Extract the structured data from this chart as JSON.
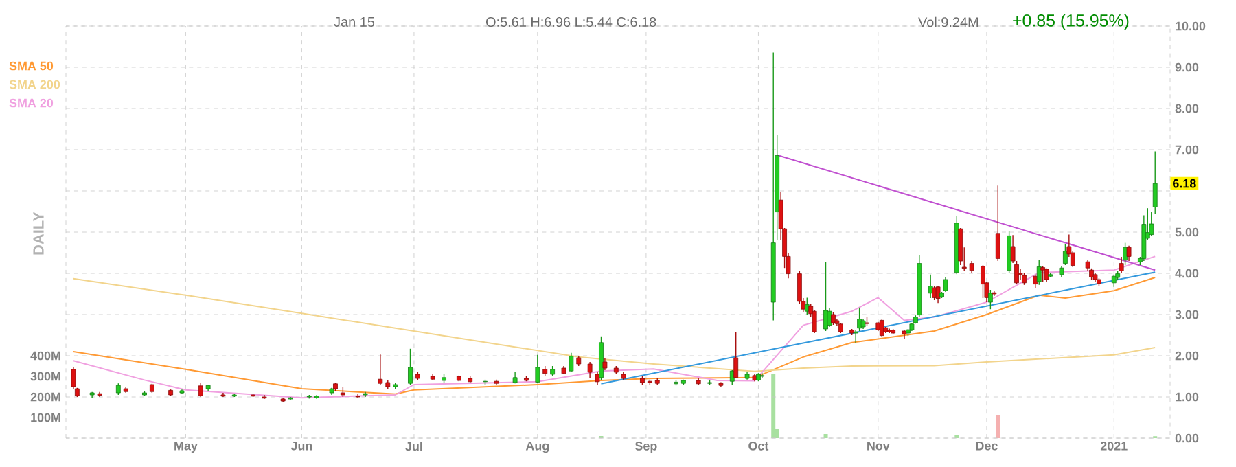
{
  "chart_data": {
    "type": "candlestick",
    "x": [
      "2020-04-01",
      "2020-04-02",
      "2020-04-06",
      "2020-04-08",
      "2020-04-13",
      "2020-04-15",
      "2020-04-20",
      "2020-04-22",
      "2020-04-27",
      "2020-04-30",
      "2020-05-05",
      "2020-05-07",
      "2020-05-11",
      "2020-05-14",
      "2020-05-19",
      "2020-05-22",
      "2020-05-27",
      "2020-05-29",
      "2020-06-03",
      "2020-06-05",
      "2020-06-09",
      "2020-06-10",
      "2020-06-12",
      "2020-06-16",
      "2020-06-18",
      "2020-06-22",
      "2020-06-24",
      "2020-06-26",
      "2020-06-30",
      "2020-07-02",
      "2020-07-06",
      "2020-07-09",
      "2020-07-13",
      "2020-07-16",
      "2020-07-20",
      "2020-07-23",
      "2020-07-28",
      "2020-07-31",
      "2020-08-03",
      "2020-08-05",
      "2020-08-07",
      "2020-08-10",
      "2020-08-12",
      "2020-08-14",
      "2020-08-17",
      "2020-08-19",
      "2020-08-20",
      "2020-08-21",
      "2020-08-24",
      "2020-08-26",
      "2020-08-31",
      "2020-09-02",
      "2020-09-04",
      "2020-09-09",
      "2020-09-11",
      "2020-09-15",
      "2020-09-18",
      "2020-09-21",
      "2020-09-24",
      "2020-09-25",
      "2020-09-28",
      "2020-09-30",
      "2020-10-01",
      "2020-10-02",
      "2020-10-05",
      "2020-10-06",
      "2020-10-07",
      "2020-10-08",
      "2020-10-09",
      "2020-10-12",
      "2020-10-13",
      "2020-10-14",
      "2020-10-15",
      "2020-10-16",
      "2020-10-19",
      "2020-10-20",
      "2020-10-21",
      "2020-10-22",
      "2020-10-23",
      "2020-10-26",
      "2020-10-27",
      "2020-10-28",
      "2020-10-29",
      "2020-10-30",
      "2020-11-02",
      "2020-11-03",
      "2020-11-04",
      "2020-11-05",
      "2020-11-06",
      "2020-11-09",
      "2020-11-10",
      "2020-11-11",
      "2020-11-12",
      "2020-11-13",
      "2020-11-16",
      "2020-11-17",
      "2020-11-18",
      "2020-11-19",
      "2020-11-20",
      "2020-11-23",
      "2020-11-24",
      "2020-11-25",
      "2020-11-27",
      "2020-11-30",
      "2020-12-01",
      "2020-12-02",
      "2020-12-03",
      "2020-12-04",
      "2020-12-07",
      "2020-12-08",
      "2020-12-09",
      "2020-12-10",
      "2020-12-11",
      "2020-12-14",
      "2020-12-15",
      "2020-12-16",
      "2020-12-17",
      "2020-12-18",
      "2020-12-21",
      "2020-12-22",
      "2020-12-23",
      "2020-12-24",
      "2020-12-28",
      "2020-12-29",
      "2020-12-30",
      "2020-12-31",
      "2021-01-04",
      "2021-01-05",
      "2021-01-06",
      "2021-01-07",
      "2021-01-08",
      "2021-01-11",
      "2021-01-12",
      "2021-01-13",
      "2021-01-14",
      "2021-01-15"
    ],
    "ohlc": [
      [
        1.67,
        1.72,
        1.2,
        1.25
      ],
      [
        1.2,
        1.22,
        1.0,
        1.03
      ],
      [
        1.05,
        1.12,
        0.98,
        1.1
      ],
      [
        1.08,
        1.12,
        1.0,
        1.04
      ],
      [
        1.1,
        1.33,
        1.05,
        1.28
      ],
      [
        1.2,
        1.25,
        1.1,
        1.13
      ],
      [
        1.05,
        1.15,
        1.02,
        1.1
      ],
      [
        1.3,
        1.32,
        1.1,
        1.13
      ],
      [
        1.16,
        1.18,
        1.03,
        1.05
      ],
      [
        1.1,
        1.18,
        1.08,
        1.15
      ],
      [
        1.27,
        1.35,
        1.0,
        1.03
      ],
      [
        1.2,
        1.3,
        1.15,
        1.28
      ],
      [
        1.05,
        1.1,
        1.0,
        1.02
      ],
      [
        1.02,
        1.08,
        1.0,
        1.05
      ],
      [
        1.05,
        1.08,
        1.0,
        1.02
      ],
      [
        1.0,
        1.05,
        0.95,
        0.97
      ],
      [
        0.95,
        0.98,
        0.88,
        0.9
      ],
      [
        0.95,
        1.0,
        0.92,
        0.98
      ],
      [
        1.0,
        1.05,
        0.96,
        1.02
      ],
      [
        0.98,
        1.05,
        0.95,
        1.02
      ],
      [
        1.1,
        1.22,
        1.05,
        1.2
      ],
      [
        1.32,
        1.35,
        1.15,
        1.2
      ],
      [
        1.1,
        1.25,
        1.0,
        1.05
      ],
      [
        1.02,
        1.08,
        0.98,
        1.0
      ],
      [
        1.05,
        1.12,
        1.0,
        1.08
      ],
      [
        1.43,
        2.03,
        1.3,
        1.33
      ],
      [
        1.35,
        1.4,
        1.2,
        1.25
      ],
      [
        1.25,
        1.35,
        1.2,
        1.3
      ],
      [
        1.33,
        2.17,
        1.3,
        1.72
      ],
      [
        1.55,
        1.6,
        1.4,
        1.45
      ],
      [
        1.5,
        1.55,
        1.4,
        1.43
      ],
      [
        1.4,
        1.55,
        1.35,
        1.47
      ],
      [
        1.5,
        1.52,
        1.38,
        1.4
      ],
      [
        1.45,
        1.5,
        1.35,
        1.37
      ],
      [
        1.37,
        1.42,
        1.3,
        1.38
      ],
      [
        1.38,
        1.42,
        1.3,
        1.33
      ],
      [
        1.35,
        1.6,
        1.33,
        1.47
      ],
      [
        1.45,
        1.5,
        1.38,
        1.4
      ],
      [
        1.36,
        2.02,
        1.33,
        1.72
      ],
      [
        1.67,
        1.75,
        1.5,
        1.57
      ],
      [
        1.55,
        1.75,
        1.5,
        1.67
      ],
      [
        1.7,
        1.75,
        1.55,
        1.57
      ],
      [
        1.63,
        2.07,
        1.6,
        1.99
      ],
      [
        1.95,
        2.0,
        1.75,
        1.8
      ],
      [
        1.8,
        1.85,
        1.45,
        1.6
      ],
      [
        1.55,
        1.6,
        1.3,
        1.37
      ],
      [
        1.47,
        2.47,
        1.4,
        2.32
      ],
      [
        1.85,
        1.95,
        1.65,
        1.7
      ],
      [
        1.7,
        1.75,
        1.55,
        1.6
      ],
      [
        1.55,
        1.6,
        1.4,
        1.45
      ],
      [
        1.45,
        1.5,
        1.3,
        1.35
      ],
      [
        1.38,
        1.42,
        1.3,
        1.35
      ],
      [
        1.4,
        1.45,
        1.3,
        1.33
      ],
      [
        1.32,
        1.4,
        1.28,
        1.36
      ],
      [
        1.33,
        1.42,
        1.3,
        1.4
      ],
      [
        1.4,
        1.45,
        1.3,
        1.32
      ],
      [
        1.33,
        1.4,
        1.3,
        1.35
      ],
      [
        1.33,
        1.36,
        1.25,
        1.28
      ],
      [
        1.38,
        1.65,
        1.3,
        1.63
      ],
      [
        1.95,
        2.57,
        1.45,
        1.47
      ],
      [
        1.45,
        1.6,
        1.42,
        1.55
      ],
      [
        1.52,
        1.55,
        1.38,
        1.41
      ],
      [
        1.41,
        1.58,
        1.38,
        1.55
      ],
      [
        1.5,
        1.58,
        1.45,
        1.52
      ],
      [
        3.3,
        9.36,
        2.86,
        4.74
      ],
      [
        5.49,
        7.36,
        4.8,
        6.86
      ],
      [
        5.78,
        5.97,
        4.8,
        5.08
      ],
      [
        5.08,
        5.1,
        4.13,
        4.41
      ],
      [
        4.41,
        4.5,
        3.88,
        3.99
      ],
      [
        3.99,
        4.05,
        3.25,
        3.32
      ],
      [
        3.32,
        3.4,
        3.05,
        3.13
      ],
      [
        3.08,
        3.41,
        3.0,
        3.24
      ],
      [
        3.2,
        3.25,
        2.95,
        3.02
      ],
      [
        3.08,
        3.1,
        2.55,
        2.58
      ],
      [
        2.65,
        4.27,
        2.6,
        3.1
      ],
      [
        2.74,
        3.15,
        2.7,
        3.08
      ],
      [
        3.0,
        3.05,
        2.75,
        2.8
      ],
      [
        2.85,
        2.9,
        2.72,
        2.78
      ],
      [
        2.77,
        2.8,
        2.55,
        2.58
      ],
      [
        2.62,
        2.65,
        2.5,
        2.55
      ],
      [
        2.55,
        2.62,
        2.3,
        2.58
      ],
      [
        2.67,
        3.17,
        2.6,
        2.89
      ],
      [
        2.7,
        2.9,
        2.65,
        2.85
      ],
      [
        2.8,
        2.94,
        2.72,
        2.78
      ],
      [
        2.8,
        2.82,
        2.6,
        2.63
      ],
      [
        2.86,
        2.88,
        2.45,
        2.49
      ],
      [
        2.68,
        2.7,
        2.55,
        2.58
      ],
      [
        2.62,
        2.66,
        2.55,
        2.58
      ],
      [
        2.62,
        2.65,
        2.52,
        2.55
      ],
      [
        2.6,
        2.62,
        2.41,
        2.53
      ],
      [
        2.55,
        2.65,
        2.48,
        2.63
      ],
      [
        2.63,
        2.8,
        2.6,
        2.77
      ],
      [
        2.8,
        2.98,
        2.78,
        2.94
      ],
      [
        2.99,
        4.44,
        2.95,
        4.24
      ],
      [
        3.52,
        3.97,
        3.4,
        3.69
      ],
      [
        3.65,
        3.7,
        3.35,
        3.41
      ],
      [
        3.67,
        3.7,
        3.28,
        3.39
      ],
      [
        3.43,
        3.55,
        3.4,
        3.52
      ],
      [
        3.58,
        3.9,
        3.55,
        3.85
      ],
      [
        4.02,
        5.39,
        3.98,
        5.22
      ],
      [
        5.08,
        5.1,
        4.2,
        4.3
      ],
      [
        4.15,
        4.63,
        4.05,
        4.12
      ],
      [
        4.24,
        4.3,
        4.0,
        4.07
      ],
      [
        4.17,
        4.2,
        3.4,
        3.74
      ],
      [
        3.77,
        3.8,
        3.3,
        3.41
      ],
      [
        3.3,
        3.6,
        3.13,
        3.52
      ],
      [
        3.53,
        3.57,
        3.45,
        3.5
      ],
      [
        4.97,
        6.13,
        4.3,
        4.36
      ],
      [
        4.07,
        5.02,
        4.0,
        4.91
      ],
      [
        4.65,
        4.93,
        4.25,
        4.3
      ],
      [
        4.21,
        4.3,
        3.75,
        3.77
      ],
      [
        4.0,
        4.1,
        3.85,
        3.97
      ],
      [
        3.95,
        4.0,
        3.72,
        3.77
      ],
      [
        3.93,
        3.97,
        3.65,
        3.74
      ],
      [
        3.8,
        4.32,
        3.72,
        4.16
      ],
      [
        4.14,
        4.18,
        3.8,
        4.08
      ],
      [
        4.1,
        4.12,
        3.8,
        3.85
      ],
      [
        3.93,
        4.0,
        3.9,
        3.97
      ],
      [
        3.97,
        4.17,
        3.9,
        4.13
      ],
      [
        4.24,
        4.7,
        4.2,
        4.54
      ],
      [
        4.65,
        4.94,
        4.4,
        4.47
      ],
      [
        4.5,
        4.55,
        4.15,
        4.19
      ],
      [
        4.28,
        4.33,
        4.05,
        4.13
      ],
      [
        4.08,
        4.12,
        3.85,
        3.91
      ],
      [
        3.97,
        4.0,
        3.8,
        3.85
      ],
      [
        3.85,
        3.88,
        3.7,
        3.75
      ],
      [
        3.77,
        3.97,
        3.67,
        3.93
      ],
      [
        3.9,
        4.05,
        3.85,
        3.99
      ],
      [
        4.24,
        4.4,
        4.0,
        4.06
      ],
      [
        4.32,
        4.74,
        4.2,
        4.63
      ],
      [
        4.63,
        4.67,
        4.3,
        4.41
      ],
      [
        4.28,
        4.4,
        4.2,
        4.36
      ],
      [
        4.36,
        5.41,
        4.3,
        5.19
      ],
      [
        4.85,
        5.58,
        4.8,
        4.99
      ],
      [
        4.94,
        5.5,
        4.9,
        5.2
      ],
      [
        5.61,
        6.96,
        5.44,
        6.18
      ]
    ],
    "colors": [
      "#dd1111",
      "#dd1111",
      "#22cc22",
      "#dd1111",
      "#22cc22",
      "#dd1111",
      "#22cc22",
      "#dd1111",
      "#dd1111",
      "#22cc22",
      "#dd1111",
      "#22cc22",
      "#dd1111",
      "#22cc22",
      "#dd1111",
      "#dd1111",
      "#dd1111",
      "#22cc22",
      "#22cc22",
      "#22cc22",
      "#22cc22",
      "#dd1111",
      "#dd1111",
      "#dd1111",
      "#22cc22",
      "#dd1111",
      "#dd1111",
      "#22cc22",
      "#22cc22",
      "#dd1111",
      "#dd1111",
      "#22cc22",
      "#dd1111",
      "#dd1111",
      "#22cc22",
      "#dd1111",
      "#22cc22",
      "#dd1111",
      "#22cc22",
      "#dd1111",
      "#22cc22",
      "#dd1111",
      "#22cc22",
      "#dd1111",
      "#dd1111",
      "#dd1111",
      "#22cc22",
      "#dd1111",
      "#dd1111",
      "#dd1111",
      "#dd1111",
      "#dd1111",
      "#dd1111",
      "#22cc22",
      "#22cc22",
      "#dd1111",
      "#22cc22",
      "#dd1111",
      "#22cc22",
      "#dd1111",
      "#22cc22",
      "#dd1111",
      "#22cc22",
      "#22cc22",
      "#22cc22",
      "#22cc22",
      "#dd1111",
      "#dd1111",
      "#dd1111",
      "#dd1111",
      "#dd1111",
      "#22cc22",
      "#dd1111",
      "#dd1111",
      "#22cc22",
      "#22cc22",
      "#dd1111",
      "#dd1111",
      "#dd1111",
      "#dd1111",
      "#22cc22",
      "#22cc22",
      "#22cc22",
      "#dd1111",
      "#dd1111",
      "#dd1111",
      "#dd1111",
      "#dd1111",
      "#dd1111",
      "#dd1111",
      "#22cc22",
      "#22cc22",
      "#22cc22",
      "#22cc22",
      "#22cc22",
      "#dd1111",
      "#dd1111",
      "#22cc22",
      "#22cc22",
      "#22cc22",
      "#dd1111",
      "#dd1111",
      "#dd1111",
      "#dd1111",
      "#dd1111",
      "#22cc22",
      "#dd1111",
      "#dd1111",
      "#22cc22",
      "#dd1111",
      "#dd1111",
      "#dd1111",
      "#dd1111",
      "#dd1111",
      "#22cc22",
      "#dd1111",
      "#dd1111",
      "#22cc22",
      "#22cc22",
      "#22cc22",
      "#dd1111",
      "#dd1111",
      "#dd1111",
      "#dd1111",
      "#dd1111",
      "#dd1111",
      "#22cc22",
      "#22cc22",
      "#dd1111",
      "#22cc22",
      "#dd1111",
      "#22cc22",
      "#22cc22",
      "#22cc22",
      "#22cc22",
      "#22cc22"
    ],
    "series": [
      {
        "name": "SMA 50",
        "type": "line",
        "color": "#ff9933",
        "x": [
          "2020-04-01",
          "2020-05-01",
          "2020-06-01",
          "2020-06-26",
          "2020-07-01",
          "2020-08-03",
          "2020-08-20",
          "2020-09-03",
          "2020-09-30",
          "2020-10-13",
          "2020-10-26",
          "2020-11-17",
          "2020-12-01",
          "2020-12-15",
          "2020-12-22",
          "2021-01-04",
          "2021-01-15"
        ],
        "values": [
          2.1,
          1.67,
          1.2,
          1.07,
          1.17,
          1.3,
          1.4,
          1.45,
          1.47,
          1.97,
          2.32,
          2.6,
          3.0,
          3.47,
          3.4,
          3.58,
          3.9
        ]
      },
      {
        "name": "SMA 200",
        "type": "line",
        "color": "#f2d48c",
        "x": [
          "2020-04-01",
          "2020-05-01",
          "2020-06-01",
          "2020-06-26",
          "2020-08-14",
          "2020-09-03",
          "2020-09-30",
          "2020-10-13",
          "2020-10-26",
          "2020-11-17",
          "2020-12-01",
          "2021-01-04",
          "2021-01-15"
        ],
        "values": [
          3.87,
          3.47,
          3.03,
          2.67,
          1.97,
          1.8,
          1.62,
          1.7,
          1.75,
          1.76,
          1.85,
          2.02,
          2.2
        ]
      },
      {
        "name": "SMA 20",
        "type": "line",
        "color": "#f0a0e0",
        "x": [
          "2020-04-01",
          "2020-04-20",
          "2020-05-01",
          "2020-06-01",
          "2020-06-26",
          "2020-07-01",
          "2020-08-03",
          "2020-08-20",
          "2020-09-03",
          "2020-09-20",
          "2020-09-30",
          "2020-10-13",
          "2020-10-26",
          "2020-11-02",
          "2020-11-09",
          "2020-11-17",
          "2020-12-01",
          "2020-12-15",
          "2021-01-04",
          "2021-01-15"
        ],
        "values": [
          1.88,
          1.41,
          1.17,
          0.98,
          1.05,
          1.3,
          1.37,
          1.63,
          1.68,
          1.4,
          1.39,
          2.74,
          3.08,
          3.41,
          2.86,
          2.94,
          3.3,
          4.02,
          4.08,
          4.41
        ]
      },
      {
        "type": "line",
        "color": "#c050d0",
        "x": [
          "2020-10-06",
          "2021-01-15"
        ],
        "values": [
          6.87,
          4.08
        ]
      },
      {
        "type": "line",
        "color": "#3399dd",
        "x": [
          "2020-08-20",
          "2021-01-15"
        ],
        "values": [
          1.32,
          4.03
        ]
      },
      {
        "type": "bar",
        "axis": "y2",
        "x": [
          "2020-08-20",
          "2020-10-05",
          "2020-10-06",
          "2020-10-19",
          "2020-11-23",
          "2020-12-04",
          "2021-01-15"
        ],
        "values": [
          10,
          310,
          45,
          20,
          15,
          110,
          9.24
        ],
        "colors": [
          "#a8e0a0",
          "#a8e0a0",
          "#a8e0a0",
          "#a8e0a0",
          "#a8e0a0",
          "#f5b0b0",
          "#a8e0a0"
        ]
      }
    ],
    "xlim": [
      "2020-03-30",
      "2021-01-19"
    ],
    "xticks": [
      {
        "value": "2020-05-01",
        "label": "May"
      },
      {
        "value": "2020-06-01",
        "label": "Jun"
      },
      {
        "value": "2020-07-01",
        "label": "Jul"
      },
      {
        "value": "2020-08-03",
        "label": "Aug"
      },
      {
        "value": "2020-09-01",
        "label": "Sep"
      },
      {
        "value": "2020-10-01",
        "label": "Oct"
      },
      {
        "value": "2020-11-02",
        "label": "Nov"
      },
      {
        "value": "2020-12-01",
        "label": "Dec"
      },
      {
        "value": "2021-01-04",
        "label": "2021"
      }
    ],
    "ylim": [
      0,
      10
    ],
    "yticks": [
      {
        "value": 0,
        "label": "0.00"
      },
      {
        "value": 1,
        "label": "1.00"
      },
      {
        "value": 2,
        "label": "2.00"
      },
      {
        "value": 3,
        "label": "3.00"
      },
      {
        "value": 4,
        "label": "4.00"
      },
      {
        "value": 5,
        "label": "5.00"
      },
      {
        "value": 6,
        "label": null
      },
      {
        "value": 7,
        "label": "7.00"
      },
      {
        "value": 8,
        "label": "8.00"
      },
      {
        "value": 9,
        "label": "9.00"
      },
      {
        "value": 10,
        "label": "10.00"
      }
    ],
    "y2lim": [
      0,
      2000
    ],
    "y2ticks": [
      {
        "value": 100,
        "label": "100M"
      },
      {
        "value": 200,
        "label": "200M"
      },
      {
        "value": 300,
        "label": "300M"
      },
      {
        "value": 400,
        "label": "400M"
      }
    ],
    "grid": true,
    "legend": "top left",
    "annotations": [
      "Jan 15",
      "O:5.61 H:6.96 L:5.44 C:6.18",
      "Vol:9.24M",
      "+0.85 (15.95%)",
      "DAILY",
      {
        "text": "6.18",
        "x": "2021-01-15",
        "y": 6.18
      }
    ]
  }
}
